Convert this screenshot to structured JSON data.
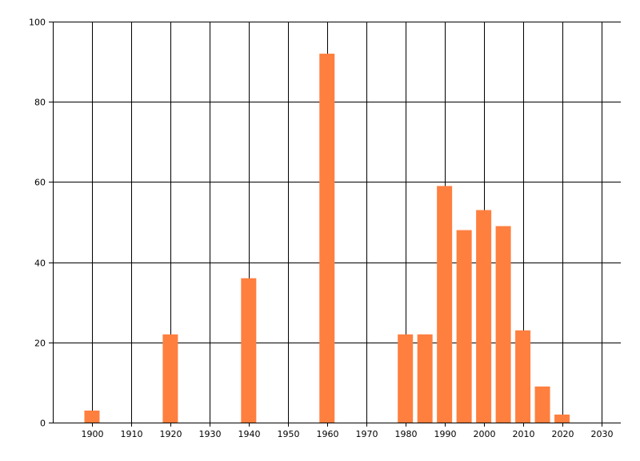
{
  "chart_data": {
    "type": "bar",
    "title": "",
    "xlabel": "",
    "ylabel": "",
    "x": [
      1900,
      1920,
      1940,
      1960,
      1980,
      1985,
      1990,
      1995,
      2000,
      2005,
      2010,
      2015,
      2020
    ],
    "values": [
      3,
      22,
      36,
      92,
      22,
      22,
      59,
      48,
      53,
      49,
      23,
      9,
      2
    ],
    "xlim": [
      1890,
      2035
    ],
    "ylim": [
      0,
      100
    ],
    "x_ticks": [
      "1900",
      "1910",
      "1920",
      "1930",
      "1940",
      "1950",
      "1960",
      "1970",
      "1980",
      "1990",
      "2000",
      "2010",
      "2020",
      "2030"
    ],
    "y_ticks": [
      "0",
      "20",
      "40",
      "60",
      "80",
      "100"
    ],
    "grid": true,
    "legend": "none",
    "bar_color": "#ff7f3f",
    "grid_color": "#000000"
  }
}
